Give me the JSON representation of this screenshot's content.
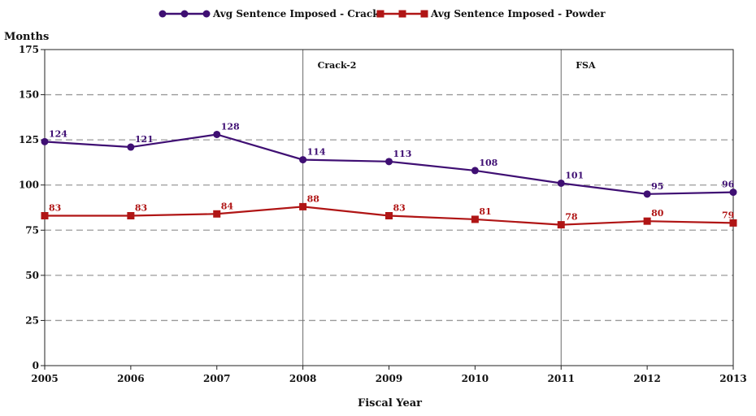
{
  "chart_data": {
    "type": "line",
    "x": [
      2005,
      2006,
      2007,
      2008,
      2009,
      2010,
      2011,
      2012,
      2013
    ],
    "xlabel": "Fiscal Year",
    "ylabel": "Months",
    "ylim": [
      0,
      175
    ],
    "yticks": [
      0,
      25,
      50,
      75,
      100,
      125,
      150,
      175
    ],
    "grid": "horizontal dashed",
    "legend_position": "top-center",
    "series": [
      {
        "name": "Avg Sentence Imposed - Crack",
        "color": "#3f0f73",
        "marker": "circle",
        "values": [
          124,
          121,
          128,
          114,
          113,
          108,
          101,
          95,
          96
        ]
      },
      {
        "name": "Avg Sentence Imposed - Powder",
        "color": "#b01515",
        "marker": "square",
        "values": [
          83,
          83,
          84,
          88,
          83,
          81,
          78,
          80,
          79
        ]
      }
    ],
    "annotations": [
      {
        "x": 2008,
        "label": "Crack-2"
      },
      {
        "x": 2011,
        "label": "FSA"
      }
    ]
  }
}
